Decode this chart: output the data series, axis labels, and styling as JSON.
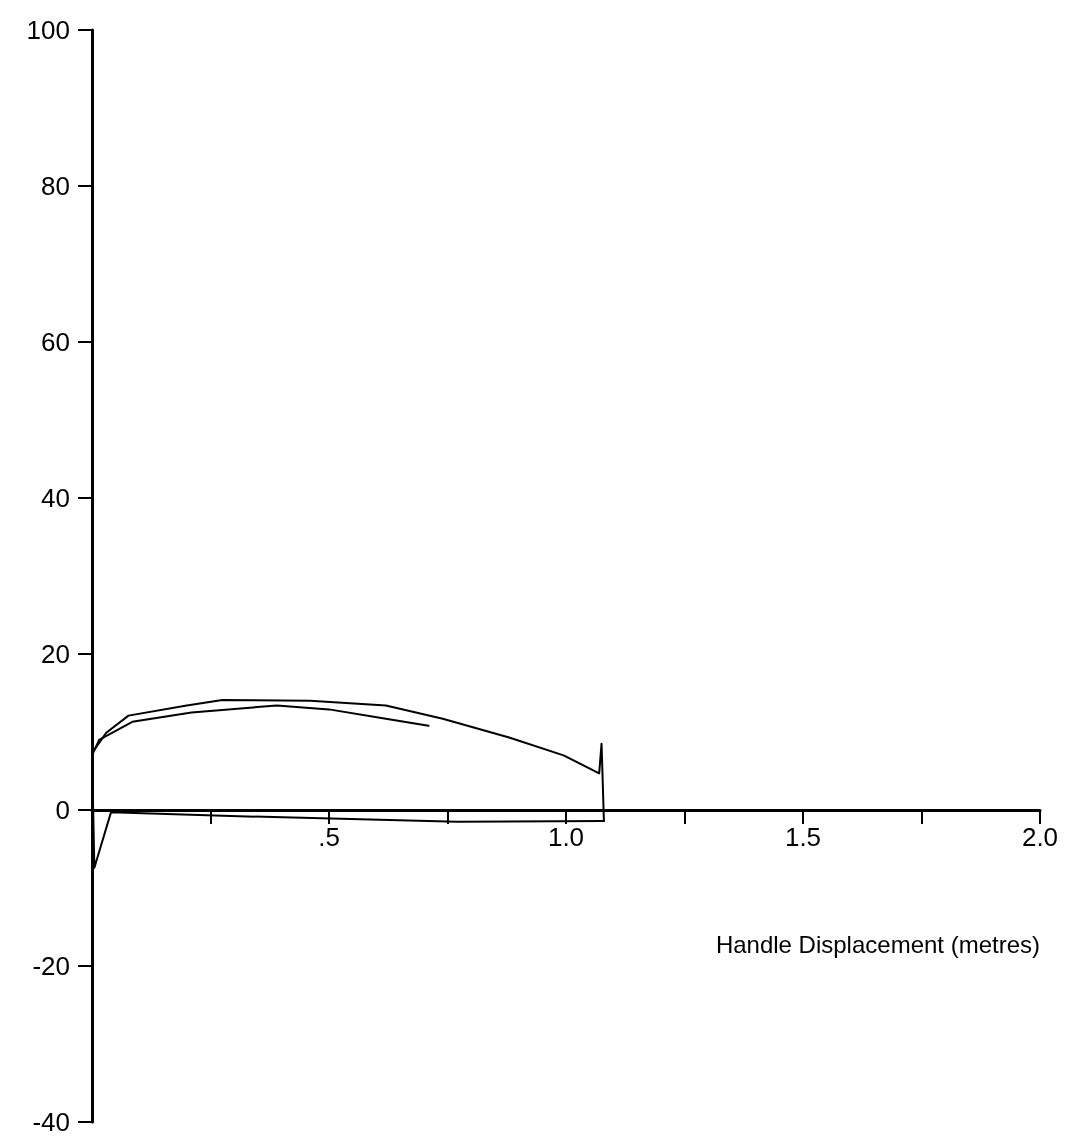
{
  "chart_data": {
    "type": "line",
    "xlabel": "Handle Displacement (metres)",
    "xlim": [
      0,
      2
    ],
    "xticks": [
      {
        "value": 0.25,
        "label": null
      },
      {
        "value": 0.5,
        "label": ".5"
      },
      {
        "value": 0.75,
        "label": null
      },
      {
        "value": 1,
        "label": "1.0"
      },
      {
        "value": 1.25,
        "label": null
      },
      {
        "value": 1.5,
        "label": "1.5"
      },
      {
        "value": 1.75,
        "label": null
      },
      {
        "value": 2,
        "label": "2.0"
      }
    ],
    "ylim": [
      -40,
      100
    ],
    "yticks": [
      -40,
      -20,
      0,
      20,
      40,
      60,
      80,
      100
    ],
    "grid": false,
    "marker": "none",
    "line_style": "solid",
    "series": [
      {
        "color": "#000000",
        "x": [
          0,
          0.03,
          0.077,
          0.2,
          0.275,
          0.46,
          0.62,
          0.74,
          0.88,
          0.995,
          1.07,
          1.075,
          1.08
        ],
        "values": [
          7.3,
          9.9,
          12.1,
          13.4,
          14.1,
          14,
          13.4,
          11.7,
          9.3,
          7,
          4.7,
          8.5,
          -1.4
        ]
      },
      {
        "color": "#000000",
        "x": [
          1.08,
          0.77,
          0.31,
          0.04,
          0.005,
          0
        ],
        "values": [
          -1.4,
          -1.5,
          -0.8,
          -0.3,
          -7.4,
          7.3
        ]
      },
      {
        "color": "#000000",
        "x": [
          0,
          0.015,
          0.085,
          0.21,
          0.39,
          0.5,
          0.62,
          0.71
        ],
        "values": [
          7,
          9,
          11.3,
          12.5,
          13.4,
          12.9,
          11.7,
          10.8
        ]
      }
    ]
  }
}
